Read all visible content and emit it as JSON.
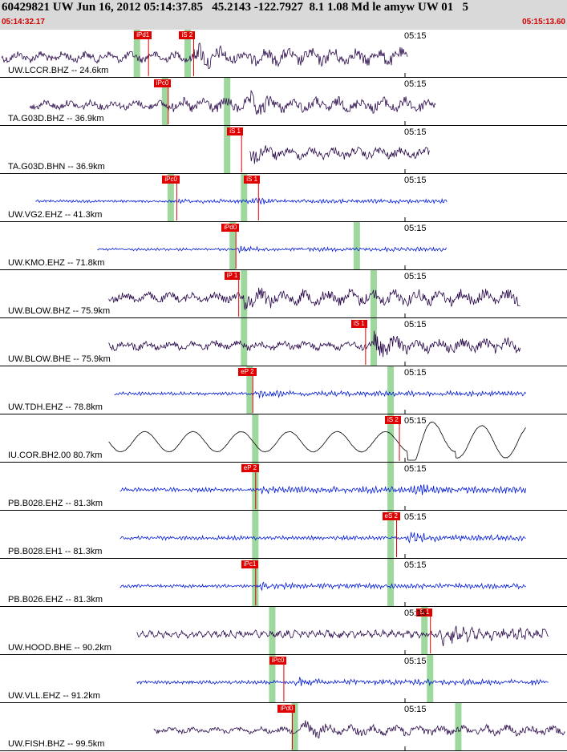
{
  "header": {
    "title": "60429821 UW Jun 16, 2012 05:14:37.85   45.2143 -122.7927  8.1 1.08 Md le amyw UW 01   5",
    "start_time": "05:14:32.17",
    "end_time": "05:15:13.60",
    "tick_label": "05:15"
  },
  "colors": {
    "header_bg": "#d9d9d9",
    "header_time": "#d00000",
    "trace_dark": "#2a0a4a",
    "trace_blue": "#0018d8",
    "trace_black": "#000000",
    "pick": "#e00000",
    "window": "#9fd89f"
  },
  "traces": [
    {
      "label": "UW.LCCR.BHZ -- 24.6km",
      "color": "dark",
      "start": 0.0,
      "end": 0.72,
      "amp": 0.32,
      "burst": 0.34,
      "freq": "low",
      "windows": [
        0.24,
        0.33
      ],
      "picks": [
        {
          "label": "iPd1",
          "pos": 0.235
        },
        {
          "label": "iS 2",
          "pos": 0.315
        }
      ],
      "onset": 0.34
    },
    {
      "label": "TA.G03D.BHZ -- 36.9km",
      "color": "dark",
      "start": 0.05,
      "end": 0.77,
      "amp": 0.28,
      "burst": 0.44,
      "freq": "low",
      "windows": [
        0.29,
        0.4
      ],
      "picks": [
        {
          "label": "iPc0",
          "pos": 0.27
        }
      ],
      "onset": 0.3
    },
    {
      "label": "TA.G03D.BHN -- 36.9km",
      "color": "dark",
      "start": 0.44,
      "end": 0.76,
      "amp": 0.22,
      "burst": 0.44,
      "freq": "low",
      "windows": [
        0.4
      ],
      "picks": [
        {
          "label": "iS 1",
          "pos": 0.4
        }
      ],
      "onset": 0.44
    },
    {
      "label": "UW.VG2.EHZ -- 41.3km",
      "color": "blue",
      "start": 0.06,
      "end": 0.79,
      "amp": 0.07,
      "burst": 0.44,
      "freq": "high",
      "windows": [
        0.3,
        0.43
      ],
      "picks": [
        {
          "label": "iPc0",
          "pos": 0.285
        },
        {
          "label": "iS 1",
          "pos": 0.43
        }
      ],
      "onset": 0.31
    },
    {
      "label": "UW.KMO.EHZ -- 71.8km",
      "color": "blue",
      "start": 0.17,
      "end": 0.79,
      "amp": 0.07,
      "burst": 0.42,
      "freq": "high",
      "windows": [
        0.41,
        0.63
      ],
      "picks": [
        {
          "label": "iPd0",
          "pos": 0.39
        }
      ],
      "onset": 0.42
    },
    {
      "label": "UW.BLOW.BHZ -- 75.9km",
      "color": "dark",
      "start": 0.19,
      "end": 0.92,
      "amp": 0.3,
      "burst": 0.43,
      "freq": "low",
      "windows": [
        0.43,
        0.66
      ],
      "picks": [
        {
          "label": "iP 1",
          "pos": 0.395
        }
      ],
      "onset": 0.43
    },
    {
      "label": "UW.BLOW.BHE -- 75.9km",
      "color": "dark",
      "start": 0.19,
      "end": 0.92,
      "amp": 0.28,
      "burst": 0.66,
      "freq": "low",
      "windows": [
        0.43,
        0.66
      ],
      "picks": [
        {
          "label": "iS 1",
          "pos": 0.62
        }
      ],
      "onset": 0.66
    },
    {
      "label": "UW.TDH.EHZ -- 78.8km",
      "color": "blue",
      "start": 0.2,
      "end": 0.93,
      "amp": 0.09,
      "burst": 0.45,
      "freq": "high",
      "windows": [
        0.44,
        0.69
      ],
      "picks": [
        {
          "label": "eP 2",
          "pos": 0.42
        }
      ],
      "onset": 0.45
    },
    {
      "label": "IU.COR.BH2.00 80.7km",
      "color": "black",
      "start": 0.19,
      "end": 0.93,
      "amp": 0.42,
      "burst": 0.72,
      "freq": "vlow",
      "windows": [
        0.45,
        0.69
      ],
      "picks": [
        {
          "label": "iS 2",
          "pos": 0.68
        }
      ],
      "onset": 0.72
    },
    {
      "label": "PB.B028.EHZ -- 81.3km",
      "color": "blue",
      "start": 0.21,
      "end": 0.93,
      "amp": 0.12,
      "burst": 0.73,
      "freq": "high",
      "windows": [
        0.45,
        0.69
      ],
      "picks": [
        {
          "label": "eP 2",
          "pos": 0.425
        }
      ],
      "onset": 0.46
    },
    {
      "label": "PB.B028.EH1 -- 81.3km",
      "color": "blue",
      "start": 0.21,
      "end": 0.93,
      "amp": 0.11,
      "burst": 0.72,
      "freq": "high",
      "windows": [
        0.45,
        0.69
      ],
      "picks": [
        {
          "label": "eS 2",
          "pos": 0.675
        }
      ],
      "onset": 0.72
    },
    {
      "label": "PB.B026.EHZ -- 81.3km",
      "color": "blue",
      "start": 0.21,
      "end": 0.93,
      "amp": 0.09,
      "burst": 0.46,
      "freq": "high",
      "windows": [
        0.45,
        0.69
      ],
      "picks": [
        {
          "label": "iPc1",
          "pos": 0.425
        }
      ],
      "onset": 0.46
    },
    {
      "label": "UW.HOOD.BHE -- 90.2km",
      "color": "dark",
      "start": 0.24,
      "end": 0.97,
      "amp": 0.22,
      "burst": 0.78,
      "freq": "mid",
      "windows": [
        0.48,
        0.75
      ],
      "picks": [
        {
          "label": "iS 1",
          "pos": 0.735
        }
      ],
      "onset": 0.78
    },
    {
      "label": "UW.VLL.EHZ -- 91.2km",
      "color": "blue",
      "start": 0.24,
      "end": 0.97,
      "amp": 0.1,
      "burst": 0.52,
      "freq": "high",
      "windows": [
        0.48,
        0.76
      ],
      "picks": [
        {
          "label": "iPc0",
          "pos": 0.475
        }
      ],
      "onset": 0.52
    },
    {
      "label": "UW.FISH.BHZ -- 99.5km",
      "color": "dark",
      "start": 0.27,
      "end": 1.0,
      "amp": 0.2,
      "burst": 0.53,
      "freq": "low",
      "windows": [
        0.52,
        0.81
      ],
      "picks": [
        {
          "label": "iPd0",
          "pos": 0.49
        }
      ],
      "onset": 0.53
    }
  ]
}
